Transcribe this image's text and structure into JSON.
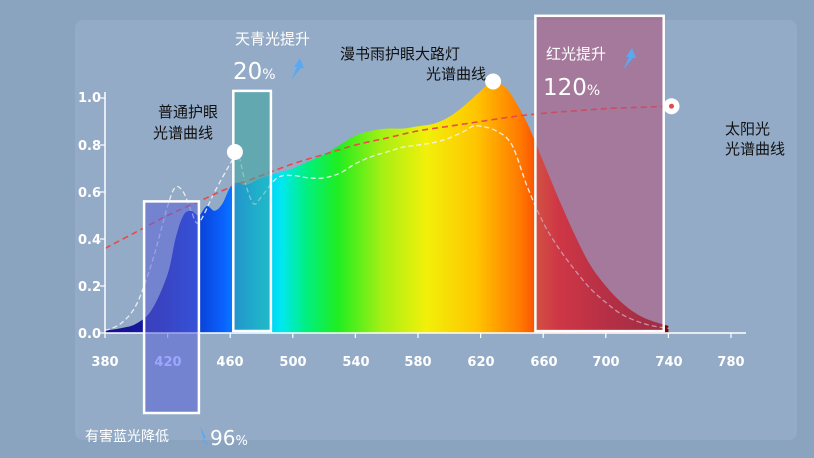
{
  "chart_data": {
    "type": "area",
    "title": "",
    "xlabel": "",
    "ylabel": "",
    "xlim": [
      380,
      780
    ],
    "ylim": [
      0,
      1.0
    ],
    "x_ticks": [
      "380",
      "420",
      "460",
      "500",
      "540",
      "580",
      "620",
      "660",
      "700",
      "740",
      "780"
    ],
    "y_ticks": [
      "0.0",
      "0.2",
      "0.4",
      "0.6",
      "0.8",
      "1.0"
    ],
    "grid": false,
    "series": [
      {
        "name": "漫书雨护眼大路灯 光谱曲线",
        "style": "filled-spectrum",
        "x": [
          380,
          390,
          400,
          410,
          420,
          425,
          430,
          435,
          440,
          445,
          450,
          455,
          460,
          465,
          470,
          480,
          490,
          500,
          510,
          520,
          530,
          540,
          550,
          560,
          570,
          580,
          590,
          600,
          610,
          620,
          625,
          630,
          635,
          640,
          650,
          660,
          670,
          680,
          690,
          700,
          710,
          720,
          730,
          740
        ],
        "y": [
          0.01,
          0.02,
          0.04,
          0.1,
          0.25,
          0.4,
          0.5,
          0.52,
          0.5,
          0.54,
          0.52,
          0.55,
          0.62,
          0.64,
          0.63,
          0.66,
          0.68,
          0.7,
          0.73,
          0.76,
          0.8,
          0.84,
          0.86,
          0.87,
          0.87,
          0.88,
          0.89,
          0.92,
          0.97,
          1.03,
          1.06,
          1.07,
          1.05,
          1.01,
          0.89,
          0.73,
          0.57,
          0.42,
          0.29,
          0.2,
          0.13,
          0.08,
          0.05,
          0.03
        ]
      },
      {
        "name": "普通护眼 光谱曲线",
        "style": "dashed-white",
        "x": [
          380,
          390,
          400,
          410,
          420,
          425,
          430,
          435,
          440,
          450,
          460,
          465,
          470,
          475,
          480,
          490,
          500,
          510,
          520,
          530,
          540,
          550,
          560,
          570,
          580,
          590,
          600,
          610,
          615,
          620,
          630,
          640,
          650,
          660,
          670,
          680,
          690,
          700,
          710,
          720,
          730,
          740
        ],
        "y": [
          0.01,
          0.04,
          0.12,
          0.3,
          0.54,
          0.62,
          0.6,
          0.52,
          0.47,
          0.6,
          0.72,
          0.76,
          0.63,
          0.55,
          0.58,
          0.66,
          0.67,
          0.66,
          0.66,
          0.68,
          0.72,
          0.75,
          0.77,
          0.79,
          0.8,
          0.81,
          0.83,
          0.86,
          0.88,
          0.88,
          0.86,
          0.8,
          0.62,
          0.47,
          0.36,
          0.27,
          0.19,
          0.13,
          0.08,
          0.05,
          0.03,
          0.02
        ]
      },
      {
        "name": "太阳光 光谱曲线",
        "style": "dashed-red",
        "x": [
          380,
          400,
          420,
          440,
          460,
          480,
          500,
          520,
          540,
          560,
          580,
          600,
          620,
          640,
          660,
          680,
          700,
          720,
          740
        ],
        "y": [
          0.36,
          0.43,
          0.5,
          0.56,
          0.62,
          0.67,
          0.72,
          0.76,
          0.8,
          0.83,
          0.86,
          0.88,
          0.9,
          0.92,
          0.935,
          0.945,
          0.955,
          0.96,
          0.965
        ]
      }
    ],
    "markers": [
      {
        "name": "普通护眼 光谱曲线",
        "x": 463,
        "y": 0.77
      },
      {
        "name": "漫书雨护眼大路灯 光谱曲线",
        "x": 628,
        "y": 1.07
      },
      {
        "name": "太阳光 光谱曲线",
        "x": 742,
        "y": 0.965
      }
    ],
    "highlights": [
      {
        "name": "harmful-blue",
        "x_range": [
          405,
          440
        ],
        "y_top": 0.56,
        "below_axis": true,
        "label": "有害蓝光降低",
        "value": "96",
        "unit": "%"
      },
      {
        "name": "cyan-boost",
        "x_range": [
          462,
          486
        ],
        "y_top": 1.03,
        "label": "天青光提升",
        "value": "20",
        "unit": "%"
      },
      {
        "name": "red-boost",
        "x_range": [
          655,
          737
        ],
        "y_top": 1.35,
        "label": "红光提升",
        "value": "120",
        "unit": "%"
      }
    ]
  },
  "labels": {
    "lamp_line1": "漫书雨护眼大路灯",
    "lamp_line2": "光谱曲线",
    "normal_line1": "普通护眼",
    "normal_line2": "光谱曲线",
    "sun_line1": "太阳光",
    "sun_line2": "光谱曲线"
  },
  "colors": {
    "background": "#8aa3bf",
    "axis": "#ffffff",
    "sun_curve": "#e84a4a",
    "blue_box_fill": "#5b62d8",
    "cyan_box_fill": "#3aa6a0",
    "red_box_fill": "#b35078"
  }
}
